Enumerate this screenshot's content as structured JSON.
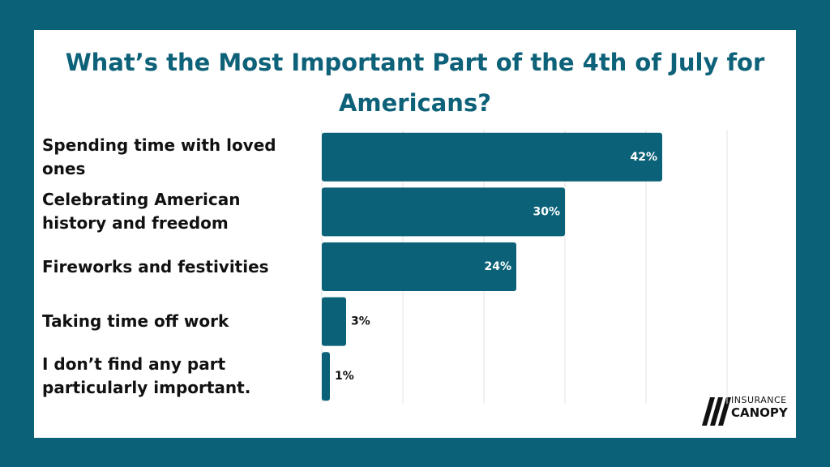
{
  "chart_data": {
    "type": "bar",
    "orientation": "horizontal",
    "title": "What’s the Most Important Part of the 4th of July for Americans?",
    "categories": [
      "Spending time with loved ones",
      "Celebrating American history and freedom",
      "Fireworks and festivities",
      "Taking time off work",
      "I don’t find any part particularly important."
    ],
    "values": [
      42,
      30,
      24,
      3,
      1
    ],
    "value_labels": [
      "42%",
      "30%",
      "24%",
      "3%",
      "1%"
    ],
    "color": "#0b6278",
    "xlim": [
      0,
      50
    ],
    "xticks": [
      0,
      10,
      20,
      30,
      40,
      50
    ],
    "grid": true
  },
  "logo": {
    "top": "INSURANCE",
    "bottom": "CANOPY"
  }
}
